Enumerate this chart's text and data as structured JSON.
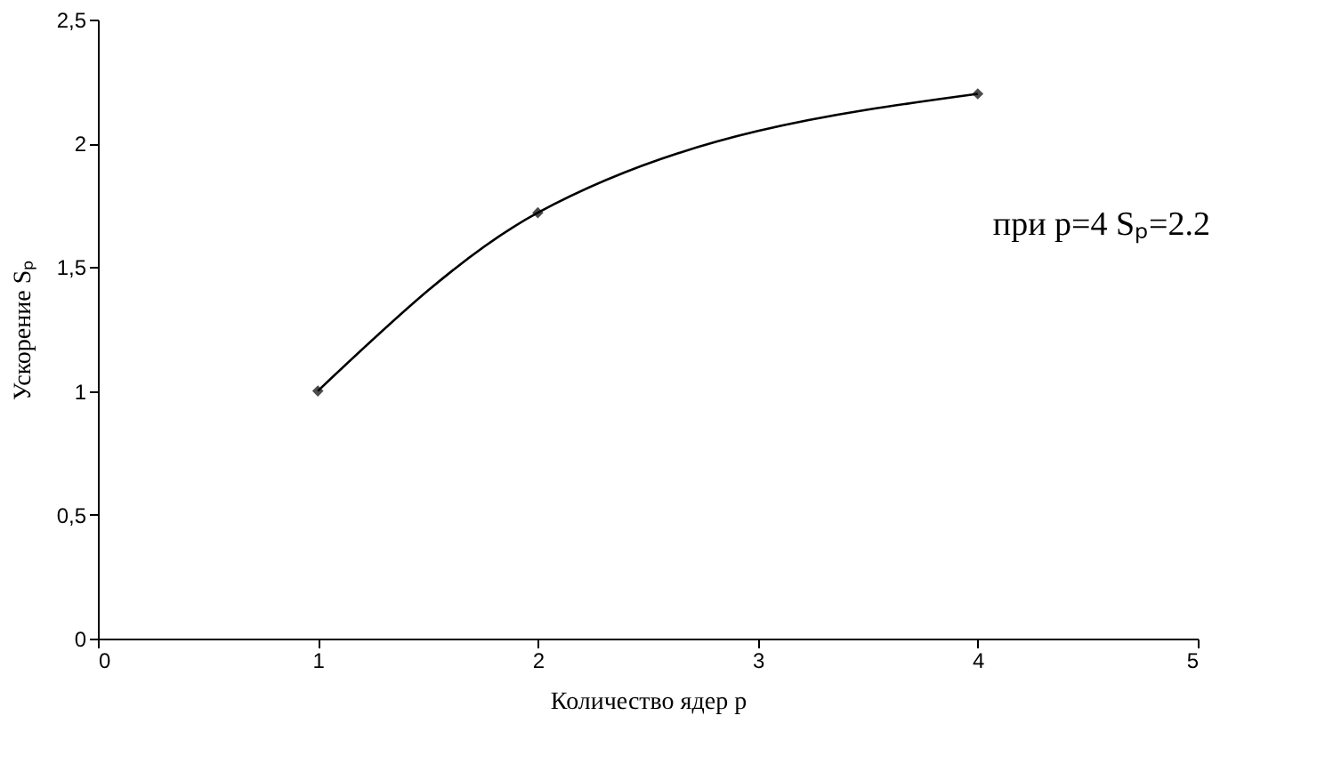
{
  "chart_data": {
    "type": "line",
    "xlabel": "Количество ядер  p",
    "ylabel": "Ускорение Sₚ",
    "x": [
      1,
      2,
      4
    ],
    "series": [
      {
        "color": "#000000",
        "values": [
          1,
          1.72,
          2.2
        ]
      }
    ],
    "xlim": [
      0,
      5
    ],
    "xticks": [
      0,
      1,
      2,
      3,
      4,
      5
    ],
    "ylim": [
      0,
      2.5
    ],
    "yticks": [
      0,
      {
        "value": 0.5,
        "label": "0,5"
      },
      1,
      {
        "value": 1.5,
        "label": "1,5"
      },
      2,
      {
        "value": 2.5,
        "label": "2,5"
      }
    ],
    "grid": false,
    "marker": "diamond",
    "line_style": "solid",
    "annotations": [
      "при p=4 Sₚ=2.2"
    ]
  }
}
